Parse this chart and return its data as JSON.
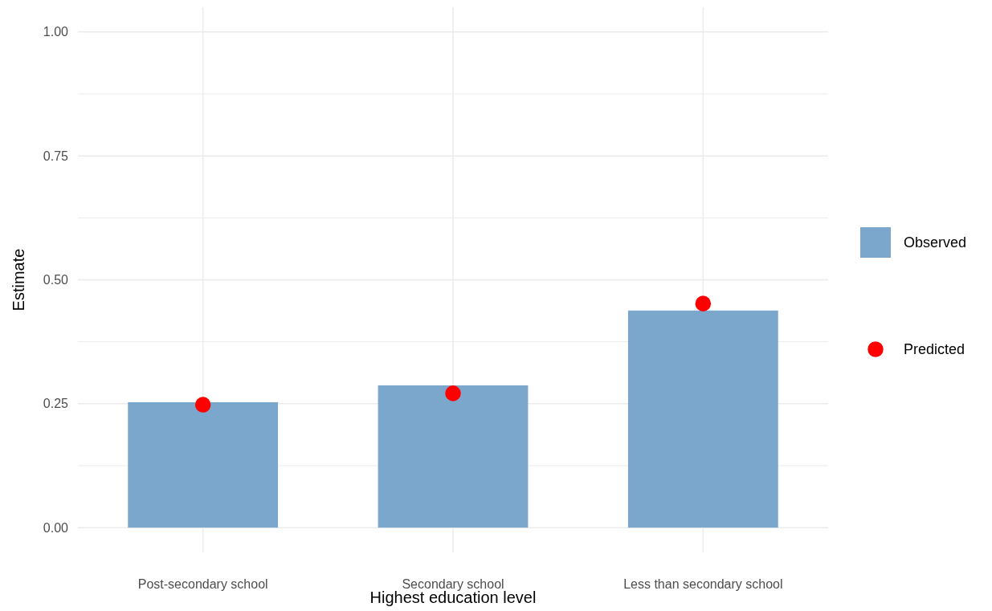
{
  "chart_data": {
    "type": "bar",
    "xlabel": "Highest education level",
    "ylabel": "Estimate",
    "categories": [
      "Post-secondary school",
      "Secondary school",
      "Less than secondary school"
    ],
    "series": [
      {
        "name": "Observed",
        "color": "#7ba7cc",
        "values": [
          0.253,
          0.287,
          0.438
        ]
      },
      {
        "name": "Predicted",
        "type": "scatter",
        "color": "#ff0000",
        "x": [
          "Post-secondary school",
          "Secondary school",
          "Less than secondary school"
        ],
        "values": [
          0.248,
          0.271,
          0.452
        ]
      }
    ],
    "ylim": [
      -0.05,
      1.05
    ],
    "yticks": [
      {
        "value": 0,
        "label": "0.00"
      },
      {
        "value": 0.125,
        "label": null
      },
      {
        "value": 0.25,
        "label": "0.25"
      },
      {
        "value": 0.375,
        "label": null
      },
      {
        "value": 0.5,
        "label": "0.50"
      },
      {
        "value": 0.625,
        "label": null
      },
      {
        "value": 0.75,
        "label": "0.75"
      },
      {
        "value": 0.875,
        "label": null
      },
      {
        "value": 1,
        "label": "1.00"
      }
    ],
    "grid": true,
    "legend": "right",
    "marker": "circle"
  }
}
